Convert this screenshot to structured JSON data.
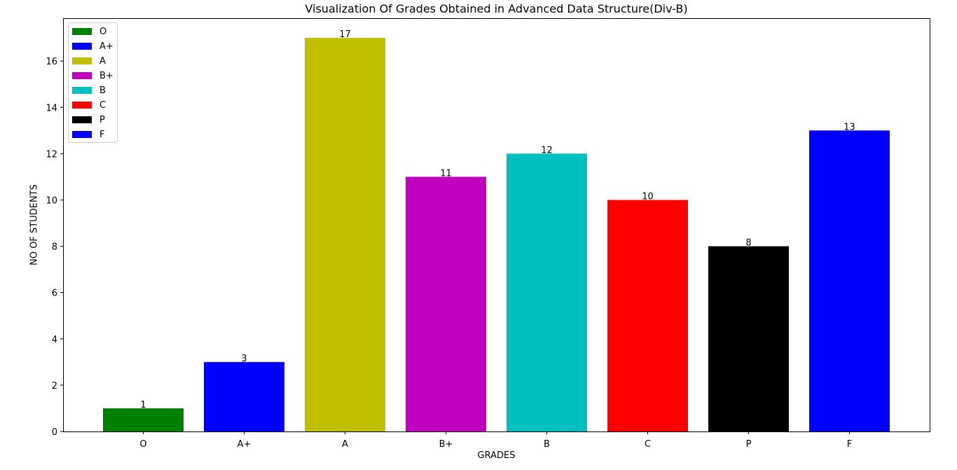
{
  "chart_data": {
    "type": "bar",
    "title": "Visualization Of Grades Obtained in Advanced Data Structure(Div-B)",
    "xlabel": "GRADES",
    "ylabel": "NO OF STUDENTS",
    "categories": [
      "O",
      "A+",
      "A",
      "B+",
      "B",
      "C",
      "P",
      "F"
    ],
    "values": [
      1,
      3,
      17,
      11,
      12,
      10,
      8,
      13
    ],
    "colors": [
      "#008000",
      "#0000ff",
      "#bfbf00",
      "#bf00bf",
      "#00bfbf",
      "#ff0000",
      "#000000",
      "#0000ff"
    ],
    "ylim": [
      0,
      17.85
    ],
    "yticks": [
      0,
      2,
      4,
      6,
      8,
      10,
      12,
      14,
      16
    ],
    "grid": false,
    "legend": {
      "placement": "top-left",
      "entries": [
        "O",
        "A+",
        "A",
        "B+",
        "B",
        "C",
        "P",
        "F"
      ]
    }
  }
}
